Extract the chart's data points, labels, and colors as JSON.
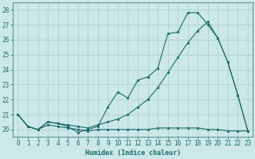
{
  "xlabel": "Humidex (Indice chaleur)",
  "ylabel": "",
  "bg_color": "#cce8e8",
  "line_color": "#1a6b6b",
  "grid_color": "#aacccc",
  "xlim": [
    -0.5,
    23.5
  ],
  "ylim": [
    19.5,
    28.5
  ],
  "xticks": [
    0,
    1,
    2,
    3,
    4,
    5,
    6,
    7,
    8,
    9,
    10,
    11,
    12,
    13,
    14,
    15,
    16,
    17,
    18,
    19,
    20,
    21,
    22,
    23
  ],
  "yticks": [
    20,
    21,
    22,
    23,
    24,
    25,
    26,
    27,
    28
  ],
  "line1_x": [
    0,
    1,
    2,
    3,
    4,
    5,
    6,
    7,
    8,
    9,
    10,
    11,
    12,
    13,
    14,
    15,
    16,
    17,
    18,
    19,
    20,
    21,
    22,
    23
  ],
  "line1_y": [
    21.0,
    20.2,
    20.0,
    20.5,
    20.4,
    20.2,
    19.8,
    20.0,
    20.2,
    21.5,
    22.5,
    22.1,
    23.3,
    23.5,
    24.1,
    26.4,
    26.5,
    27.8,
    27.8,
    27.0,
    26.1,
    24.5,
    22.3,
    19.9
  ],
  "line2_x": [
    0,
    1,
    2,
    3,
    4,
    5,
    6,
    7,
    8,
    9,
    10,
    11,
    12,
    13,
    14,
    15,
    16,
    17,
    18,
    19,
    20,
    21,
    22,
    23
  ],
  "line2_y": [
    21.0,
    20.2,
    20.0,
    20.3,
    20.2,
    20.1,
    20.0,
    19.9,
    20.0,
    20.0,
    20.0,
    20.0,
    20.0,
    20.0,
    20.1,
    20.1,
    20.1,
    20.1,
    20.1,
    20.0,
    20.0,
    19.9,
    19.9,
    19.9
  ],
  "line3_x": [
    0,
    1,
    2,
    3,
    4,
    5,
    6,
    7,
    8,
    9,
    10,
    11,
    12,
    13,
    14,
    15,
    16,
    17,
    18,
    19,
    20,
    21,
    22,
    23
  ],
  "line3_y": [
    21.0,
    20.2,
    20.0,
    20.5,
    20.4,
    20.3,
    20.2,
    20.1,
    20.3,
    20.5,
    20.7,
    21.0,
    21.5,
    22.0,
    22.8,
    23.8,
    24.8,
    25.8,
    26.6,
    27.2,
    26.1,
    24.5,
    22.3,
    19.9
  ]
}
